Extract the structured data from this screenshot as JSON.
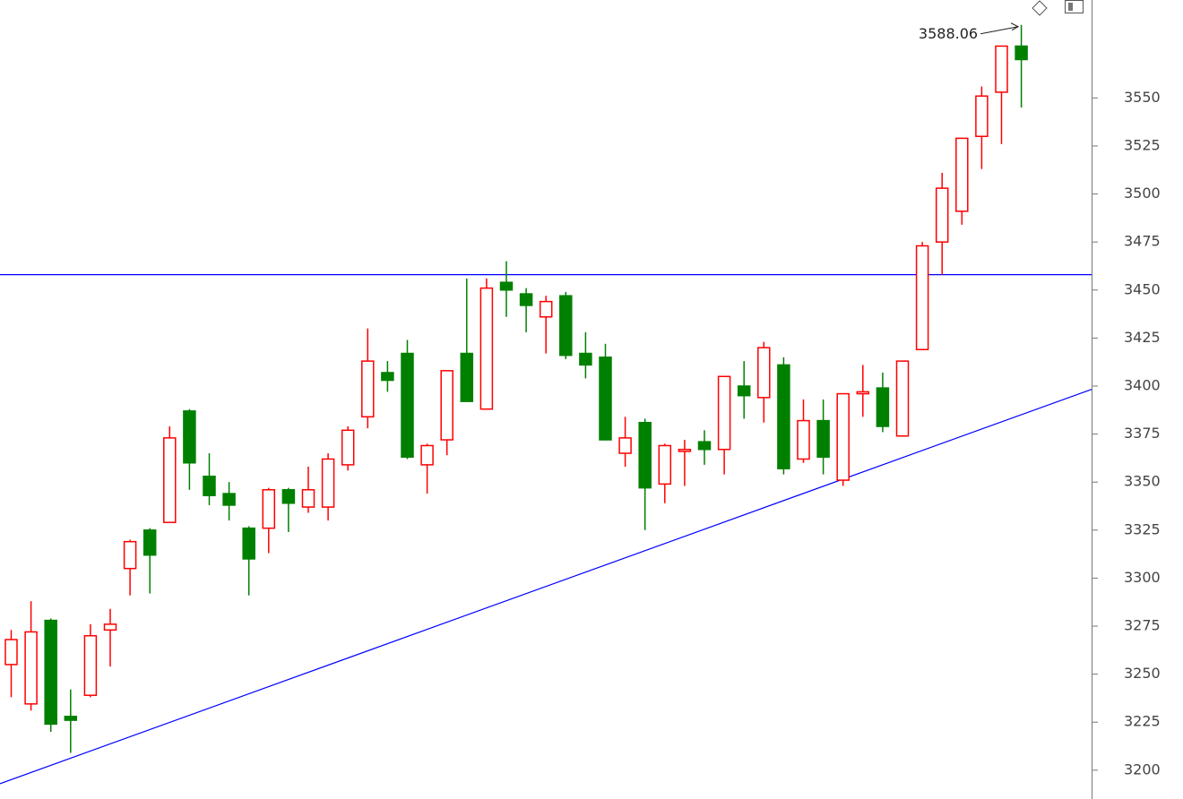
{
  "chart_data": {
    "type": "candlestick",
    "open": [
      3255,
      3234.5,
      3278,
      3228,
      3239,
      3273,
      3305,
      3325,
      3329,
      3387,
      3353,
      3344,
      3326,
      3326,
      3346,
      3337,
      3337,
      3359,
      3384,
      3407,
      3417,
      3359,
      3372,
      3417,
      3388,
      3454,
      3448,
      3436,
      3447,
      3417,
      3415,
      3365,
      3381,
      3349,
      3366,
      3371,
      3367,
      3400,
      3394,
      3411,
      3362,
      3382,
      3351,
      3396,
      3399,
      3374,
      3419,
      3475,
      3491,
      3530,
      3553,
      3577
    ],
    "high": [
      3273,
      3288,
      3279,
      3242,
      3276,
      3284,
      3320,
      3326,
      3379,
      3388,
      3365,
      3350,
      3327,
      3347,
      3347,
      3358,
      3365,
      3379,
      3430,
      3413,
      3424,
      3370,
      3408,
      3456,
      3456,
      3465,
      3451,
      3447,
      3449,
      3428,
      3422,
      3384,
      3383,
      3370,
      3372,
      3377,
      3405,
      3413,
      3423,
      3415,
      3393,
      3393,
      3396,
      3411,
      3407,
      3413,
      3475,
      3511,
      3529,
      3556,
      3577,
      3588.06
    ],
    "low": [
      3238,
      3231,
      3220,
      3209,
      3238,
      3254,
      3291,
      3292,
      3329,
      3346,
      3338,
      3330,
      3291,
      3313,
      3324,
      3334,
      3330,
      3356,
      3378,
      3397,
      3362,
      3344,
      3364,
      3392,
      3388,
      3436,
      3428,
      3417,
      3414,
      3404,
      3372,
      3358,
      3325,
      3339,
      3348,
      3359,
      3354,
      3383,
      3381,
      3354,
      3360,
      3354,
      3348,
      3384,
      3376,
      3374,
      3419,
      3458,
      3484,
      3513,
      3526,
      3545
    ],
    "close": [
      3268,
      3272,
      3224,
      3226,
      3270,
      3276,
      3319,
      3312,
      3373,
      3360,
      3343,
      3338,
      3310,
      3346,
      3339,
      3346,
      3362,
      3377,
      3413,
      3403,
      3363,
      3369,
      3408,
      3392,
      3451,
      3450,
      3442,
      3444,
      3416,
      3411,
      3372,
      3373,
      3347,
      3369,
      3367,
      3367,
      3405,
      3395,
      3420,
      3357,
      3382,
      3363,
      3396,
      3397,
      3379,
      3413,
      3473,
      3503,
      3529,
      3551,
      3577,
      3570
    ],
    "up_color": "#ff0000",
    "down_color": "#008000",
    "hline": 3458,
    "line_color": "#0000ff",
    "trendline": {
      "x": [
        0,
        51
      ],
      "y": [
        3195,
        3385
      ]
    },
    "annotation": "3588.06",
    "ylim": [
      3185,
      3601
    ],
    "yticks": [
      3200,
      3225,
      3250,
      3275,
      3300,
      3325,
      3350,
      3375,
      3400,
      3425,
      3450,
      3475,
      3500,
      3525,
      3550
    ]
  }
}
